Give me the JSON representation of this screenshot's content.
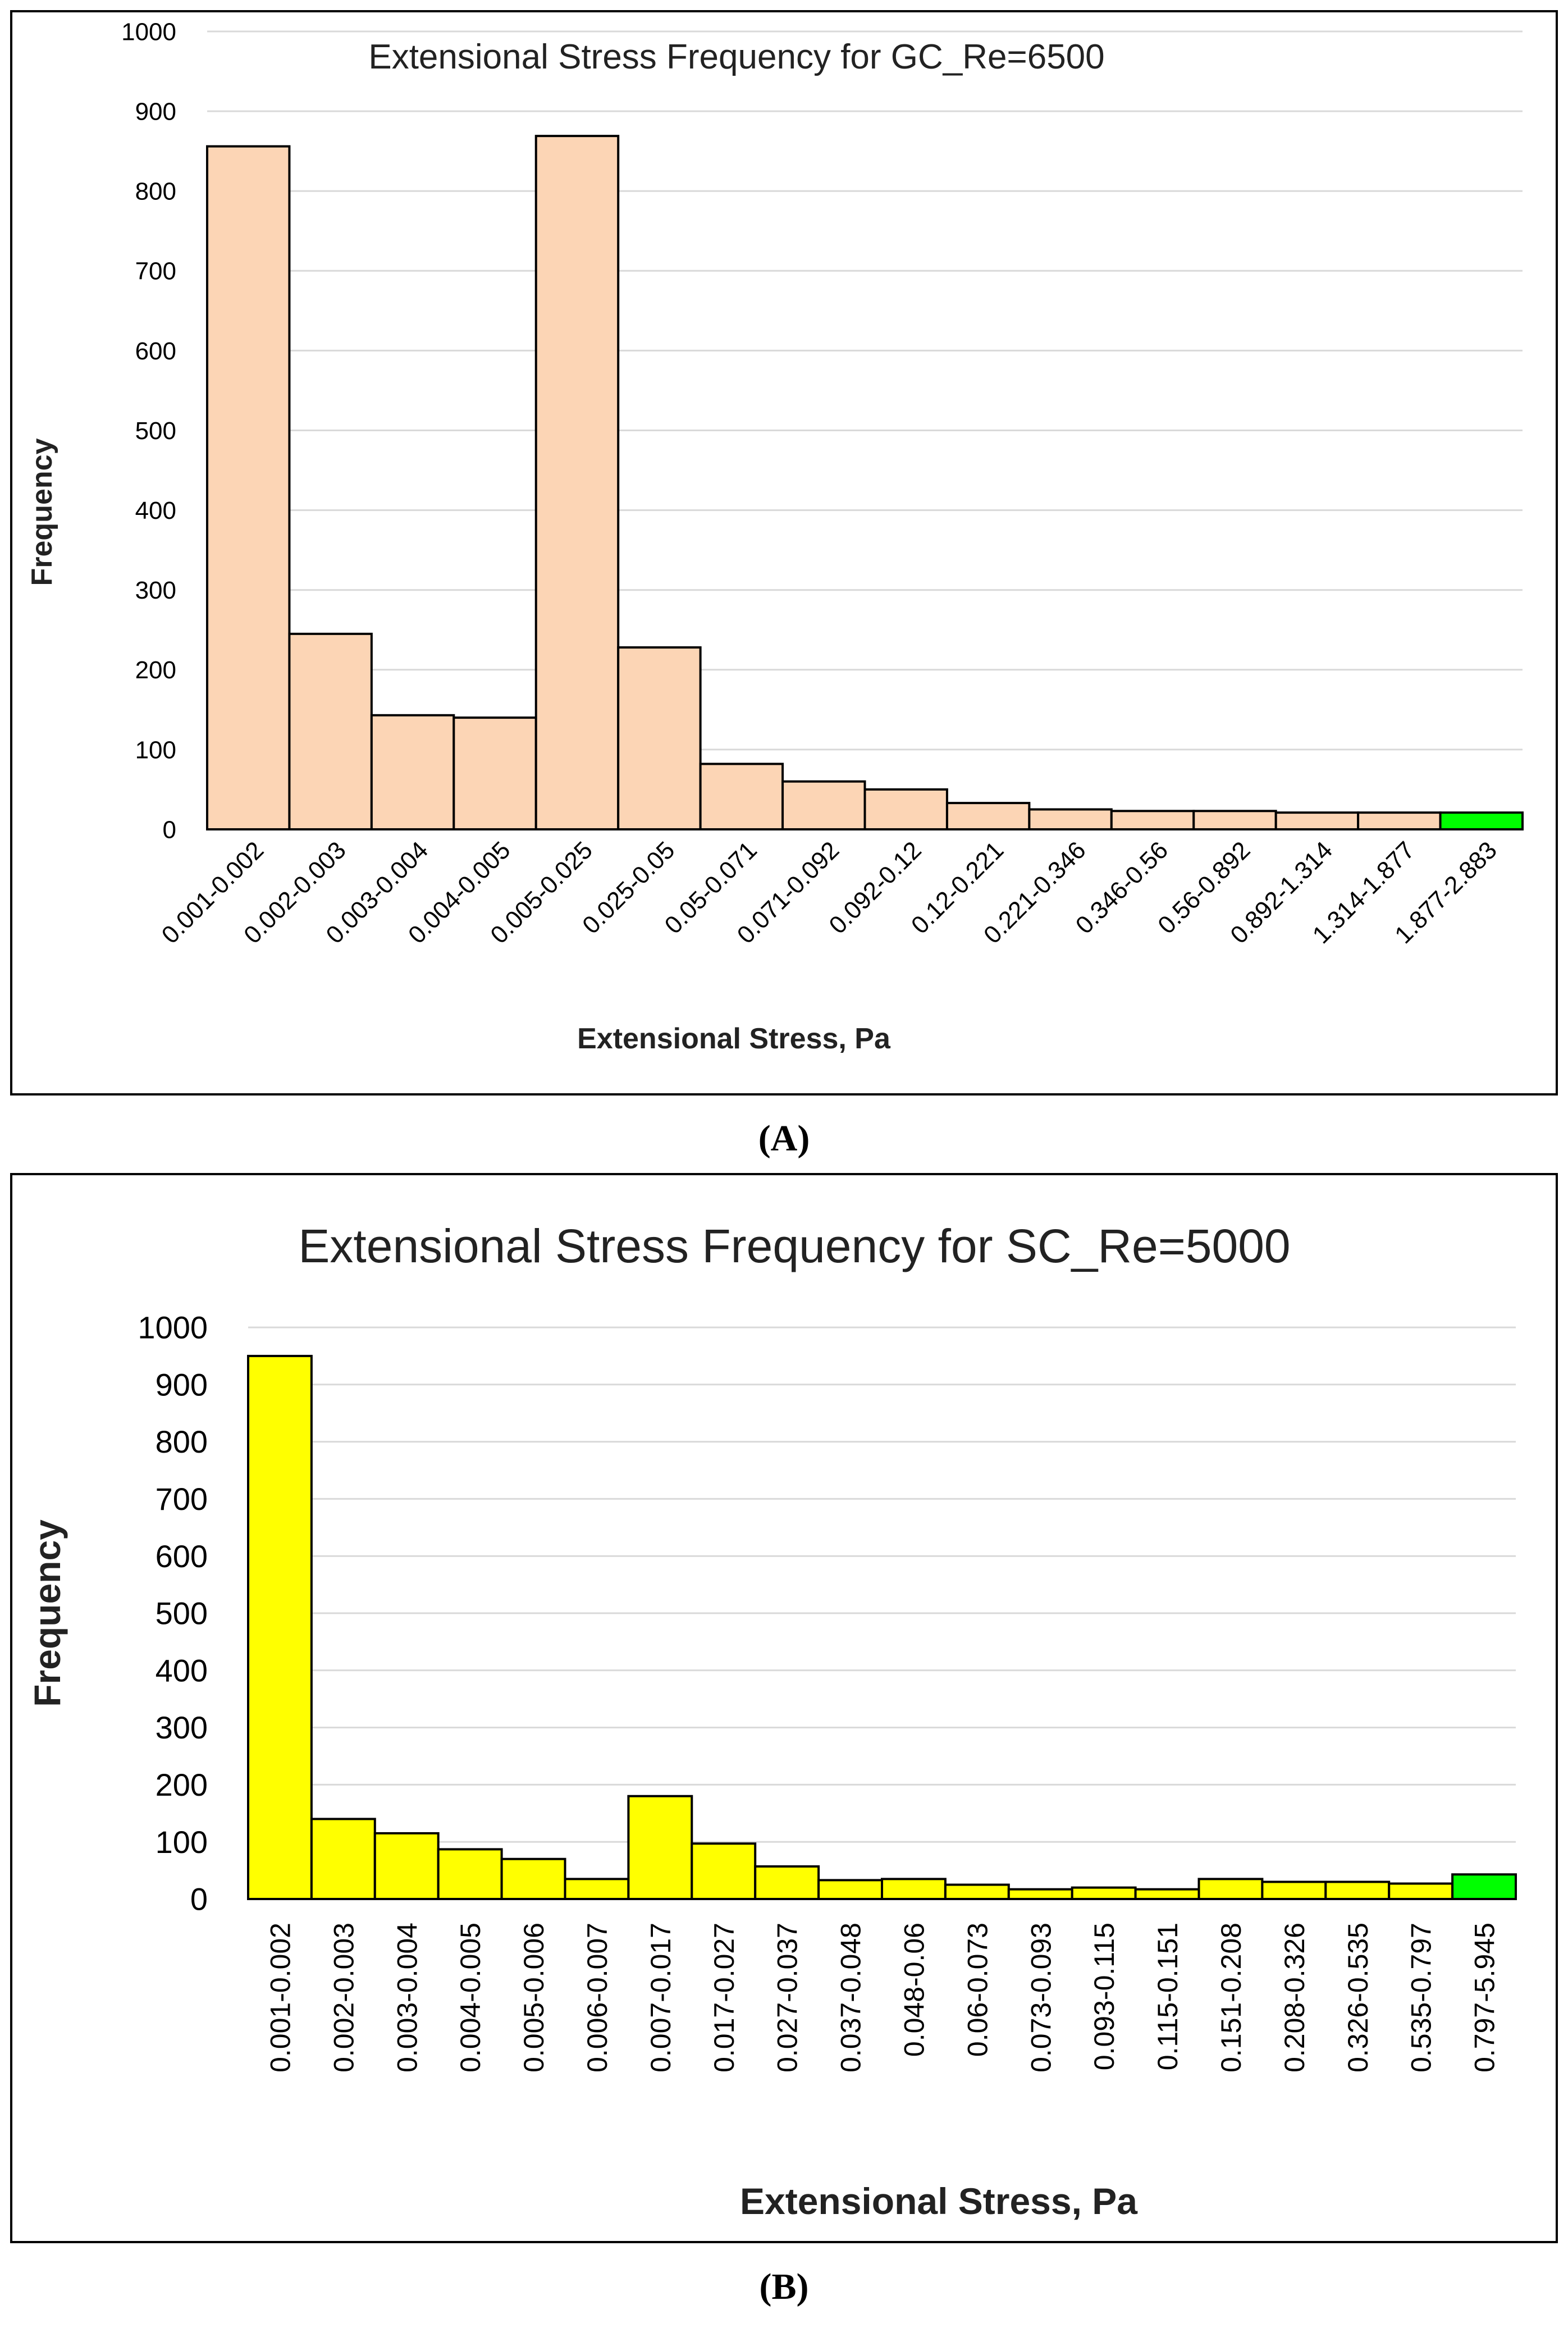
{
  "captions": {
    "a": "(A)",
    "b": "(B)"
  },
  "chart_data": [
    {
      "type": "bar",
      "title": "Extensional Stress Frequency for GC_Re=6500",
      "xlabel": "Extensional Stress, Pa",
      "ylabel": "Frequency",
      "ylim": [
        0,
        1000
      ],
      "yticks": [
        "0",
        "100",
        "200",
        "300",
        "400",
        "500",
        "600",
        "700",
        "800",
        "900",
        "1000"
      ],
      "grid": true,
      "categories": [
        "0.001-0.002",
        "0.002-0.003",
        "0.003-0.004",
        "0.004-0.005",
        "0.005-0.025",
        "0.025-0.05",
        "0.05-0.071",
        "0.071-0.092",
        "0.092-0.12",
        "0.12-0.221",
        "0.221-0.346",
        "0.346-0.56",
        "0.56-0.892",
        "0.892-1.314",
        "1.314-1.877",
        "1.877-2.883"
      ],
      "values": [
        856,
        245,
        143,
        140,
        869,
        228,
        82,
        60,
        50,
        33,
        25,
        23,
        23,
        21,
        21,
        21
      ],
      "colors": {
        "bar": "#FCD5B5",
        "highlight": "#00FF00",
        "highlight_index": 15,
        "grid": "#d9d9d9"
      }
    },
    {
      "type": "bar",
      "title": "Extensional Stress Frequency for SC_Re=5000",
      "xlabel": "Extensional Stress, Pa",
      "ylabel": "Frequency",
      "ylim": [
        0,
        1000
      ],
      "yticks": [
        "0",
        "100",
        "200",
        "300",
        "400",
        "500",
        "600",
        "700",
        "800",
        "900",
        "1000"
      ],
      "grid": true,
      "categories": [
        "0.001-0.002",
        "0.002-0.003",
        "0.003-0.004",
        "0.004-0.005",
        "0.005-0.006",
        "0.006-0.007",
        "0.007-0.017",
        "0.017-0.027",
        "0.027-0.037",
        "0.037-0.048",
        "0.048-0.06",
        "0.06-0.073",
        "0.073-0.093",
        "0.093-0.115",
        "0.115-0.151",
        "0.151-0.208",
        "0.208-0.326",
        "0.326-0.535",
        "0.535-0.797",
        "0.797-5.945"
      ],
      "values": [
        950,
        140,
        115,
        87,
        70,
        35,
        180,
        97,
        57,
        33,
        35,
        25,
        17,
        20,
        17,
        35,
        30,
        30,
        27,
        43
      ],
      "colors": {
        "bar": "#FFFF00",
        "highlight": "#00FF00",
        "highlight_index": 19,
        "grid": "#d9d9d9"
      }
    }
  ]
}
